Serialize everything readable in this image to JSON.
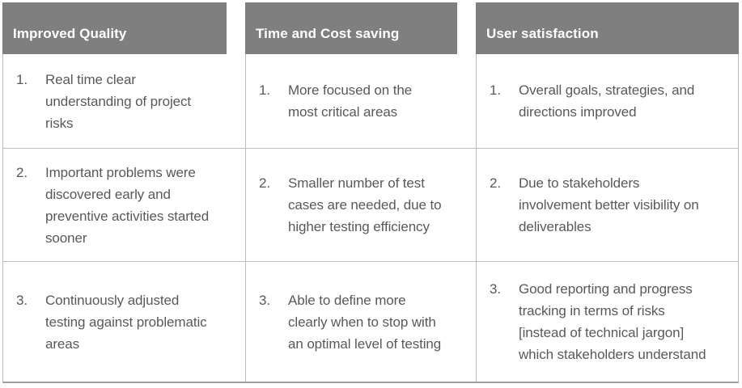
{
  "table": {
    "numbers": [
      "1.",
      "2.",
      "3."
    ],
    "columns": [
      {
        "header": "Improved Quality",
        "items": [
          "Real time clear\nunderstanding of project\nrisks",
          "Important problems were\ndiscovered early and\npreventive activities started\nsooner",
          "Continuously adjusted\ntesting against problematic\nareas"
        ]
      },
      {
        "header": "Time and Cost saving",
        "items": [
          "More focused on the\nmost critical areas",
          "Smaller number of test\ncases are needed, due to\nhigher testing efficiency",
          "Able to define more\nclearly when to stop with\nan optimal level of testing"
        ]
      },
      {
        "header": "User satisfaction",
        "items": [
          "Overall goals, strategies, and\ndirections improved",
          "Due to stakeholders\ninvolvement better visibility on\ndeliverables",
          "Good reporting and progress\ntracking in terms of risks\n[instead of technical jargon]\nwhich stakeholders understand"
        ]
      }
    ],
    "colors": {
      "header_bg": "#7f7f7f",
      "header_text": "#ffffff",
      "body_text": "#595959",
      "inner_border": "#bdbdbd",
      "bottom_border": "#a0a0a0"
    }
  }
}
